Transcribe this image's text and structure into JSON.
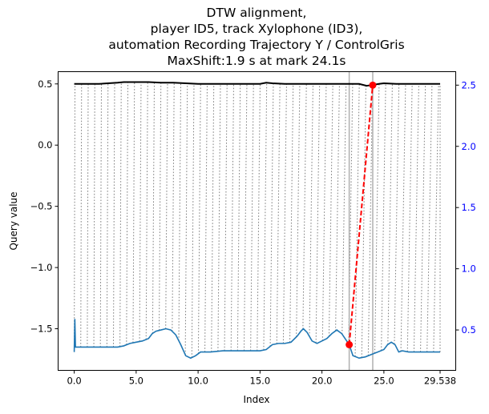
{
  "chart_data": {
    "type": "line",
    "title_lines": [
      "DTW alignment,",
      "player ID5, track Xylophone (ID3),",
      "automation Recording Trajectory Y / ControlGris",
      "MaxShift:1.9 s at mark 24.1s"
    ],
    "xlabel": "Index",
    "ylabel": "Query value",
    "xlim": [
      -1.3,
      30.8
    ],
    "ylim": [
      -1.84,
      0.6
    ],
    "y2lim": [
      0.17,
      2.61
    ],
    "xticks": [
      0.0,
      5.0,
      10.0,
      15.0,
      20.0,
      25.0,
      29.538
    ],
    "xtick_labels": [
      "0.0",
      "5.0",
      "10.0",
      "15.0",
      "20.0",
      "25.0",
      "29.538"
    ],
    "yticks": [
      0.5,
      0.0,
      -0.5,
      -1.0,
      -1.5
    ],
    "ytick_labels": [
      "0.5",
      "0.0",
      "−0.5",
      "−1.0",
      "−1.5"
    ],
    "y2ticks": [
      2.5,
      2.0,
      1.5,
      1.0,
      0.5
    ],
    "y2tick_labels": [
      "2.5",
      "2.0",
      "1.5",
      "1.0",
      "0.5"
    ],
    "vlines": [
      22.2,
      24.1
    ],
    "max_shift": {
      "x": [
        22.2,
        24.1
      ],
      "y": [
        -1.63,
        0.49
      ]
    },
    "query_series": {
      "x": [
        0.0,
        0.05,
        0.1,
        0.2,
        1.0,
        2.0,
        3.0,
        3.5,
        4.0,
        4.5,
        5.0,
        5.5,
        6.0,
        6.3,
        6.6,
        7.0,
        7.4,
        7.8,
        8.2,
        8.6,
        9.0,
        9.4,
        9.8,
        10.2,
        11.0,
        12.0,
        13.0,
        14.0,
        15.0,
        15.5,
        16.0,
        16.5,
        17.0,
        17.5,
        18.0,
        18.3,
        18.5,
        18.8,
        19.2,
        19.6,
        20.0,
        20.4,
        20.8,
        21.2,
        21.6,
        22.0,
        22.2,
        22.5,
        23.0,
        23.5,
        24.0,
        24.5,
        25.0,
        25.3,
        25.6,
        25.9,
        26.2,
        26.5,
        27.0,
        27.5,
        28.0,
        28.5,
        29.0,
        29.538
      ],
      "y": [
        -1.69,
        -1.42,
        -1.65,
        -1.65,
        -1.65,
        -1.65,
        -1.65,
        -1.65,
        -1.64,
        -1.62,
        -1.61,
        -1.6,
        -1.58,
        -1.54,
        -1.52,
        -1.51,
        -1.5,
        -1.51,
        -1.55,
        -1.63,
        -1.72,
        -1.74,
        -1.72,
        -1.69,
        -1.69,
        -1.68,
        -1.68,
        -1.68,
        -1.68,
        -1.67,
        -1.63,
        -1.62,
        -1.62,
        -1.61,
        -1.56,
        -1.52,
        -1.5,
        -1.53,
        -1.6,
        -1.62,
        -1.6,
        -1.58,
        -1.54,
        -1.51,
        -1.54,
        -1.6,
        -1.63,
        -1.72,
        -1.74,
        -1.73,
        -1.71,
        -1.69,
        -1.67,
        -1.63,
        -1.61,
        -1.63,
        -1.69,
        -1.68,
        -1.69,
        -1.69,
        -1.69,
        -1.69,
        -1.69,
        -1.69
      ]
    },
    "reference_series": {
      "x": [
        0.0,
        2.0,
        3.5,
        4.0,
        5.0,
        6.0,
        7.0,
        8.0,
        9.0,
        10.0,
        11.0,
        12.0,
        13.0,
        14.0,
        15.0,
        15.5,
        16.0,
        17.0,
        18.0,
        19.0,
        20.0,
        21.0,
        22.0,
        23.0,
        23.6,
        24.0,
        24.6,
        25.0,
        26.0,
        27.0,
        28.0,
        29.0,
        29.538
      ],
      "y": [
        0.5,
        0.5,
        0.51,
        0.515,
        0.515,
        0.515,
        0.51,
        0.51,
        0.505,
        0.5,
        0.5,
        0.5,
        0.5,
        0.5,
        0.5,
        0.51,
        0.505,
        0.5,
        0.5,
        0.5,
        0.5,
        0.5,
        0.5,
        0.5,
        0.485,
        0.49,
        0.5,
        0.505,
        0.5,
        0.5,
        0.5,
        0.5,
        0.5
      ]
    },
    "colors": {
      "query": "#1f77b4",
      "reference": "#000000",
      "alignment": "#808080",
      "max_shift": "#ff0000",
      "vline": "#b0b0b0",
      "right_axis": "#0000ff"
    },
    "grid": false,
    "legend": "none"
  }
}
